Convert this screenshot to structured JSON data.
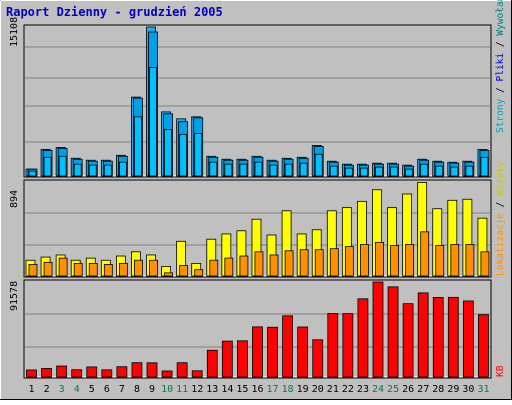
{
  "title": "Raport Dzienny -  grudzień 2005",
  "colors": {
    "background": "#c0c0c0",
    "title": "#0000c0",
    "hits": "#18b0f0",
    "pages": "#00c0ff",
    "files": "#00a0e8",
    "visits": "#ffff00",
    "sites": "#ff9000",
    "kb": "#ff0000",
    "weekend": "#008040"
  },
  "chart_data": [
    {
      "type": "bar",
      "categories": [
        "1",
        "2",
        "3",
        "4",
        "5",
        "6",
        "7",
        "8",
        "9",
        "10",
        "11",
        "12",
        "13",
        "14",
        "15",
        "16",
        "17",
        "18",
        "19",
        "20",
        "21",
        "22",
        "23",
        "24",
        "25",
        "26",
        "27",
        "28",
        "29",
        "30",
        "31"
      ],
      "weekend_days": [
        "3",
        "4",
        "10",
        "11",
        "17",
        "18",
        "24",
        "25",
        "31"
      ],
      "ymax_label": "15108",
      "ylim": [
        0,
        15108
      ],
      "legend": [
        "Wywołania",
        "Pliki",
        "Strony"
      ],
      "series": [
        {
          "name": "Wywołania",
          "values": [
            700,
            2700,
            2900,
            1800,
            1600,
            1600,
            2100,
            8000,
            15108,
            6500,
            5800,
            6000,
            2000,
            1700,
            1700,
            2000,
            1600,
            1800,
            1900,
            3100,
            1500,
            1200,
            1200,
            1300,
            1300,
            1100,
            1700,
            1500,
            1400,
            1500,
            2700
          ]
        },
        {
          "name": "Pliki",
          "values": [
            700,
            2600,
            2800,
            1700,
            1500,
            1500,
            2000,
            7900,
            14600,
            6300,
            5500,
            5900,
            1900,
            1600,
            1600,
            1900,
            1500,
            1700,
            1800,
            3000,
            1400,
            1100,
            1100,
            1200,
            1200,
            1000,
            1600,
            1400,
            1300,
            1400,
            2600
          ]
        },
        {
          "name": "Strony",
          "values": [
            500,
            1900,
            2000,
            1200,
            1100,
            1100,
            1400,
            6000,
            11000,
            4700,
            4200,
            4300,
            1400,
            1200,
            1200,
            1400,
            1100,
            1200,
            1300,
            2200,
            1000,
            800,
            800,
            900,
            900,
            700,
            1200,
            1000,
            900,
            1000,
            1900
          ]
        }
      ]
    },
    {
      "type": "bar",
      "categories": [
        "1",
        "2",
        "3",
        "4",
        "5",
        "6",
        "7",
        "8",
        "9",
        "10",
        "11",
        "12",
        "13",
        "14",
        "15",
        "16",
        "17",
        "18",
        "19",
        "20",
        "21",
        "22",
        "23",
        "24",
        "25",
        "26",
        "27",
        "28",
        "29",
        "30",
        "31"
      ],
      "ymax_label": "894",
      "ylim": [
        0,
        894
      ],
      "legend": [
        "Lokalizacje",
        "Wizyty"
      ],
      "series": [
        {
          "name": "Wizyty",
          "values": [
            150,
            180,
            200,
            150,
            170,
            150,
            190,
            230,
            200,
            90,
            330,
            120,
            350,
            400,
            430,
            540,
            390,
            620,
            400,
            440,
            620,
            650,
            710,
            820,
            650,
            780,
            890,
            640,
            720,
            730,
            550
          ]
        },
        {
          "name": "Lokalizacje",
          "values": [
            110,
            130,
            170,
            120,
            120,
            110,
            120,
            150,
            150,
            30,
            100,
            60,
            150,
            170,
            190,
            230,
            200,
            240,
            250,
            250,
            260,
            280,
            300,
            320,
            290,
            300,
            420,
            290,
            300,
            300,
            230
          ]
        }
      ]
    },
    {
      "type": "bar",
      "categories": [
        "1",
        "2",
        "3",
        "4",
        "5",
        "6",
        "7",
        "8",
        "9",
        "10",
        "11",
        "12",
        "13",
        "14",
        "15",
        "16",
        "17",
        "18",
        "19",
        "20",
        "21",
        "22",
        "23",
        "24",
        "25",
        "26",
        "27",
        "28",
        "29",
        "30",
        "31"
      ],
      "ymax_label": "91578",
      "ylim": [
        0,
        91578
      ],
      "legend": [
        "KB"
      ],
      "series": [
        {
          "name": "KB",
          "values": [
            6800,
            8200,
            10600,
            7000,
            9700,
            6900,
            9900,
            13800,
            13700,
            5800,
            13800,
            6000,
            25800,
            34600,
            34900,
            48300,
            48000,
            59000,
            48200,
            35900,
            61200,
            61100,
            75400,
            91578,
            86900,
            70700,
            81100,
            76700,
            76800,
            73300,
            60000
          ]
        }
      ]
    }
  ]
}
